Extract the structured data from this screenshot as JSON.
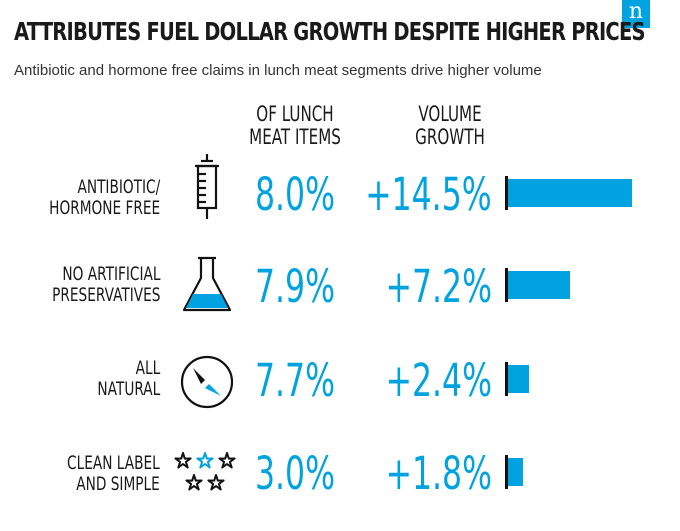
{
  "brand": {
    "logo_text": "n",
    "accent": "#00a3e0",
    "bar_color": "#00a3e0"
  },
  "header": {
    "title": "ATTRIBUTES FUEL DOLLAR GROWTH DESPITE HIGHER PRICES",
    "subtitle": "Antibiotic and hormone free claims in lunch meat segments drive higher volume"
  },
  "columns": {
    "share": [
      "OF LUNCH",
      "MEAT ITEMS"
    ],
    "growth": [
      "VOLUME",
      "GROWTH"
    ]
  },
  "chart_data": {
    "type": "bar",
    "title": "ATTRIBUTES FUEL DOLLAR GROWTH DESPITE HIGHER PRICES",
    "subtitle": "Antibiotic and hormone free claims in lunch meat segments drive higher volume",
    "categories": [
      "ANTIBIOTIC/ HORMONE FREE",
      "NO ARTIFICIAL PRESERVATIVES",
      "ALL NATURAL",
      "CLEAN LABEL AND SIMPLE"
    ],
    "series": [
      {
        "name": "OF LUNCH MEAT ITEMS",
        "values": [
          8.0,
          7.9,
          7.7,
          3.0
        ],
        "unit": "%"
      },
      {
        "name": "VOLUME GROWTH",
        "values": [
          14.5,
          7.2,
          2.4,
          1.8
        ],
        "unit": "%"
      }
    ],
    "bar_series": "VOLUME GROWTH",
    "xlim": [
      0,
      14.5
    ]
  },
  "rows": [
    {
      "label_lines": [
        "ANTIBIOTIC/",
        "HORMONE FREE"
      ],
      "icon": "syringe-icon",
      "share": "8.0%",
      "growth": "+14.5%",
      "growth_value": 14.5
    },
    {
      "label_lines": [
        "NO ARTIFICIAL",
        "PRESERVATIVES"
      ],
      "icon": "flask-icon",
      "share": "7.9%",
      "growth": "+7.2%",
      "growth_value": 7.2
    },
    {
      "label_lines": [
        "ALL",
        "NATURAL"
      ],
      "icon": "compass-icon",
      "share": "7.7%",
      "growth": "+2.4%",
      "growth_value": 2.4
    },
    {
      "label_lines": [
        "CLEAN LABEL",
        "AND SIMPLE"
      ],
      "icon": "stars-icon",
      "share": "3.0%",
      "growth": "+1.8%",
      "growth_value": 1.8
    }
  ]
}
